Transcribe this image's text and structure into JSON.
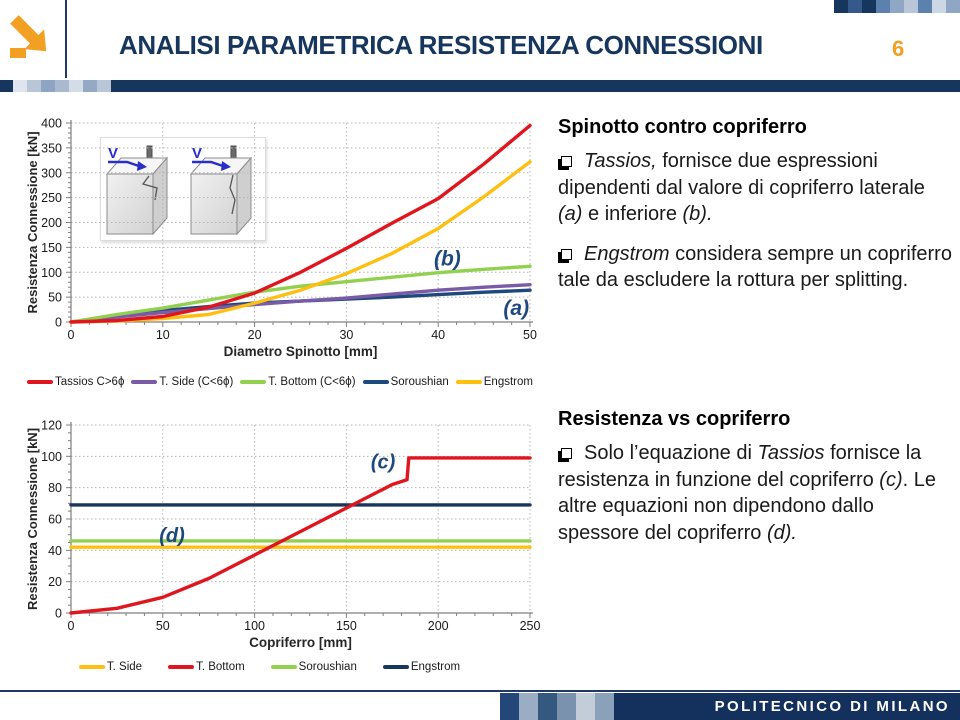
{
  "header": {
    "title": "ANALISI PARAMETRICA RESISTENZA CONNESSIONI",
    "page_number": "6"
  },
  "footer": {
    "brand": "POLITECNICO DI MILANO"
  },
  "colors": {
    "navy": "#17365d",
    "annotation_navy": "#1f497d",
    "orange": "#f2a024",
    "inset_arrow_blue": "#2a2ec9"
  },
  "decor": {
    "top_right_mosaic": [
      "#17365d",
      "#35598c",
      "#17365d",
      "#5d81ae",
      "#8fa6c4",
      "#b9c6da",
      "#5d81ae",
      "#ccd7e5",
      "#8fa6c4"
    ],
    "header_bar_mosaic": [
      "#dfe5ee",
      "#b9c6d8",
      "#8da5c2",
      "#a9b9cf",
      "#d4dce8",
      "#93a9c4",
      "#b9c6d8"
    ],
    "footer_mosaic": [
      "#24477a",
      "#9aadc4",
      "#35587f",
      "#7b92ae",
      "#c3cdd9",
      "#8ba0b9"
    ]
  },
  "right_column": {
    "block1": {
      "heading": "Spinotto contro copriferro",
      "bullet1": {
        "seg1": "Tassios,",
        "seg2": " fornisce due espressioni dipendenti dal valore di copriferro laterale ",
        "seg3": "(a)",
        "seg4": " e inferiore ",
        "seg5": "(b)."
      },
      "bullet2": {
        "seg1": "Engstrom",
        "seg2": " considera sempre un copriferro tale da escludere la rottura per splitting."
      }
    },
    "block2": {
      "heading": "Resistenza vs copriferro",
      "bullet1": {
        "seg1": "Solo l’equazione di ",
        "seg2": "Tassios",
        "seg3": " fornisce la resistenza in funzione del copriferro ",
        "seg4": "(c)",
        "seg5": ". Le altre equazioni non dipendono dallo spessore del copriferro ",
        "seg6": "(d)."
      }
    }
  },
  "inset": {
    "labels": [
      "V",
      "V"
    ]
  },
  "chart_data": [
    {
      "type": "line",
      "title": "",
      "xlabel": "Diametro Spinotto [mm]",
      "ylabel": "Resistenza Connessione [kN]",
      "xlim": [
        0,
        50
      ],
      "xtick_step": 10,
      "xminor_step": 2,
      "ylim": [
        0,
        400
      ],
      "ytick_step": 50,
      "yminor_step": 10,
      "grid": true,
      "legend_position": "bottom",
      "x": [
        0,
        5,
        10,
        15,
        20,
        25,
        30,
        35,
        40,
        45,
        50
      ],
      "series": [
        {
          "name": "Tassios C>6ϕ",
          "color": "#e0161f",
          "z": 5,
          "values": [
            0,
            3,
            11,
            30,
            58,
            100,
            148,
            199,
            248,
            318,
            395
          ]
        },
        {
          "name": "T. Side (C<6ϕ)",
          "color": "#7a5ba6",
          "z": 2,
          "values": [
            0,
            10,
            19,
            27,
            35,
            42,
            48,
            56,
            64,
            70,
            75
          ]
        },
        {
          "name": "T. Bottom (C<6ϕ)",
          "color": "#92d050",
          "z": 3,
          "values": [
            0,
            15,
            28,
            44,
            60,
            72,
            81,
            90,
            99,
            106,
            112
          ]
        },
        {
          "name": "Soroushian",
          "color": "#1f497d",
          "z": 1,
          "values": [
            0,
            12,
            23,
            31,
            38,
            42,
            46,
            50,
            55,
            60,
            64
          ]
        },
        {
          "name": "Engstrom",
          "color": "#fdc010",
          "z": 4,
          "values": [
            0,
            2,
            7,
            15,
            38,
            64,
            97,
            138,
            188,
            252,
            322
          ]
        }
      ],
      "annotations": [
        {
          "text": "(b)",
          "x": 41,
          "y": 126
        },
        {
          "text": "(a)",
          "x": 48.5,
          "y": 26
        }
      ]
    },
    {
      "type": "line",
      "title": "",
      "xlabel": "Copriferro [mm]",
      "ylabel": "Resistenza Connessione [kN]",
      "xlim": [
        0,
        250
      ],
      "xtick_step": 50,
      "xminor_step": 10,
      "ylim": [
        0,
        120
      ],
      "ytick_step": 20,
      "yminor_step": 5,
      "grid": true,
      "legend_position": "bottom",
      "series": [
        {
          "name": "T. Side",
          "color": "#fdc010",
          "z": 1,
          "x": [
            0,
            250
          ],
          "values": [
            42,
            42
          ]
        },
        {
          "name": "T. Bottom",
          "color": "#e0161f",
          "z": 4,
          "x": [
            0,
            25,
            50,
            75,
            100,
            125,
            150,
            175,
            183,
            184,
            250
          ],
          "values": [
            0,
            3,
            10,
            22,
            37,
            52,
            67,
            82,
            85,
            99,
            99
          ]
        },
        {
          "name": "Soroushian",
          "color": "#92d050",
          "z": 2,
          "x": [
            0,
            250
          ],
          "values": [
            46,
            46
          ]
        },
        {
          "name": "Engstrom",
          "color": "#17375e",
          "z": 3,
          "x": [
            0,
            250
          ],
          "values": [
            69,
            69
          ]
        }
      ],
      "annotations": [
        {
          "text": "(c)",
          "x": 170,
          "y": 96
        },
        {
          "text": "(d)",
          "x": 55,
          "y": 49
        }
      ]
    }
  ]
}
